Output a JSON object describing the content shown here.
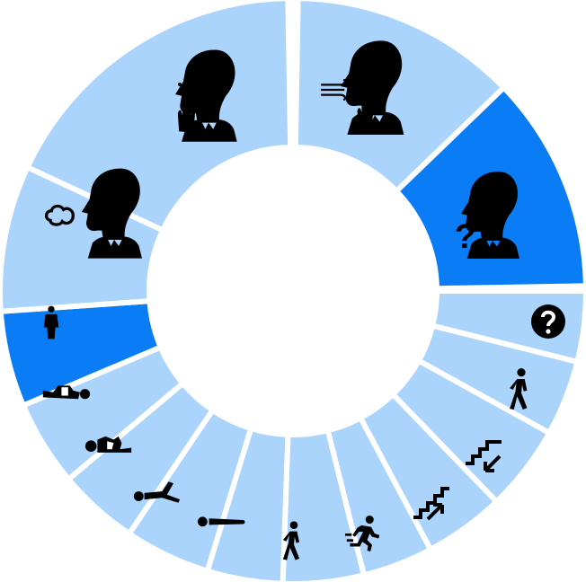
{
  "colors": {
    "segment": "#aad4fb",
    "selected": "#0a7cf6",
    "icon": "#000000",
    "background": "#ffffff"
  },
  "segments": [
    {
      "id": "cough",
      "icon": "cough-icon",
      "selected": false
    },
    {
      "id": "sneeze",
      "icon": "sneeze-icon",
      "selected": false
    },
    {
      "id": "unknown-person-sound",
      "icon": "person-question-icon",
      "selected": true
    },
    {
      "id": "unknown-activity",
      "icon": "question-mark-icon",
      "selected": false
    },
    {
      "id": "walking",
      "icon": "walking-icon",
      "selected": false
    },
    {
      "id": "walking-downstairs",
      "icon": "stairs-down-icon",
      "selected": false
    },
    {
      "id": "walking-upstairs",
      "icon": "stairs-up-icon",
      "selected": false
    },
    {
      "id": "running",
      "icon": "running-icon",
      "selected": false
    },
    {
      "id": "walking-alt",
      "icon": "walking-icon",
      "selected": false
    },
    {
      "id": "lying-down",
      "icon": "lying-down-icon",
      "selected": false
    },
    {
      "id": "push-up",
      "icon": "push-up-icon",
      "selected": false
    },
    {
      "id": "lying-prone",
      "icon": "lying-prone-icon",
      "selected": false
    },
    {
      "id": "lying-supine",
      "icon": "lying-supine-icon",
      "selected": false
    },
    {
      "id": "standing",
      "icon": "standing-icon",
      "selected": true
    },
    {
      "id": "exhale",
      "icon": "exhale-icon",
      "selected": false
    }
  ]
}
